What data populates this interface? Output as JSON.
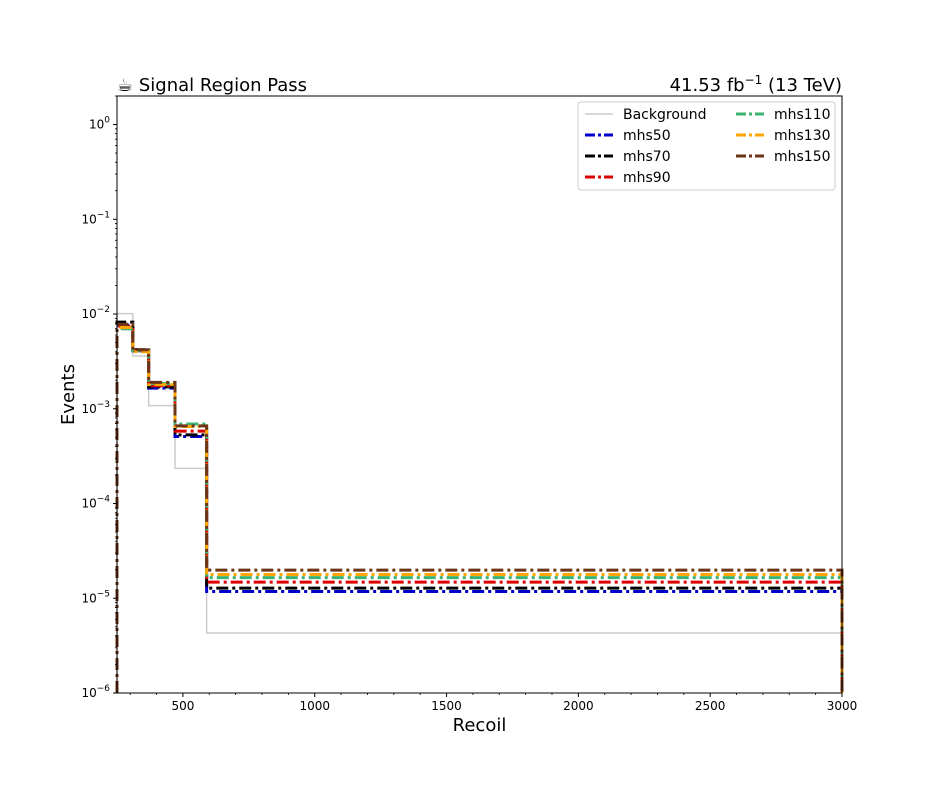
{
  "chart_data": {
    "type": "line",
    "title_left": "☕ Signal Region Pass",
    "title_right": "41.53 fb",
    "title_right_sup": "−1",
    "title_right_suffix": " (13 TeV)",
    "xlabel": "Recoil",
    "ylabel": "Events",
    "xlim": [
      250,
      3000
    ],
    "ylim": [
      1e-06,
      2
    ],
    "yscale": "log",
    "grid": false,
    "legend_placement": "top-right",
    "legend_columns": 2,
    "bin_edges": [
      250,
      310,
      370,
      470,
      590,
      3000
    ],
    "x_ticks": [
      {
        "value": 500,
        "label": "500"
      },
      {
        "value": 1000,
        "label": "1000"
      },
      {
        "value": 1500,
        "label": "1500"
      },
      {
        "value": 2000,
        "label": "2000"
      },
      {
        "value": 2500,
        "label": "2500"
      },
      {
        "value": 3000,
        "label": "3000"
      }
    ],
    "y_ticks": [
      {
        "value": 1e-06,
        "base": "10",
        "exp": "−6"
      },
      {
        "value": 1e-05,
        "base": "10",
        "exp": "−5"
      },
      {
        "value": 0.0001,
        "base": "10",
        "exp": "−4"
      },
      {
        "value": 0.001,
        "base": "10",
        "exp": "−3"
      },
      {
        "value": 0.01,
        "base": "10",
        "exp": "−2"
      },
      {
        "value": 0.1,
        "base": "10",
        "exp": "−1"
      },
      {
        "value": 1,
        "base": "10",
        "exp": "0"
      }
    ],
    "series": [
      {
        "name": "Background",
        "color": "#cccccc",
        "style": "solid",
        "values": [
          0.0101,
          0.0036,
          0.00108,
          0.000235,
          4.3e-06
        ]
      },
      {
        "name": "mhs50",
        "color": "#0000cc",
        "style": "dashdot",
        "values": [
          0.0076,
          0.0041,
          0.00165,
          0.00051,
          1.18e-05
        ]
      },
      {
        "name": "mhs70",
        "color": "#000000",
        "style": "dashdot",
        "values": [
          0.0082,
          0.0042,
          0.0017,
          0.00053,
          1.28e-05
        ]
      },
      {
        "name": "mhs90",
        "color": "#dd0000",
        "style": "dashdot",
        "values": [
          0.0074,
          0.0041,
          0.00175,
          0.00058,
          1.48e-05
        ]
      },
      {
        "name": "mhs110",
        "color": "#3cb371",
        "style": "dashdot",
        "values": [
          0.007,
          0.0041,
          0.00185,
          0.00069,
          1.65e-05
        ]
      },
      {
        "name": "mhs130",
        "color": "#ffa500",
        "style": "dashdot",
        "values": [
          0.0072,
          0.004,
          0.0018,
          0.00065,
          1.78e-05
        ]
      },
      {
        "name": "mhs150",
        "color": "#6b3518",
        "style": "dashdot",
        "values": [
          0.0078,
          0.0042,
          0.0019,
          0.00066,
          1.98e-05
        ]
      }
    ]
  }
}
